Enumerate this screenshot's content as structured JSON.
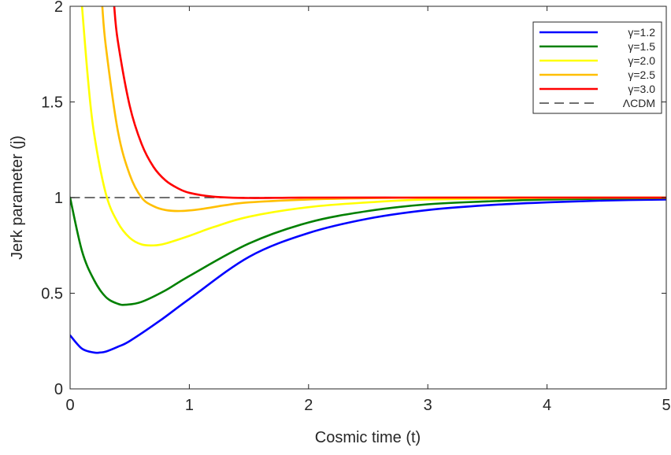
{
  "chart_data": {
    "type": "line",
    "title": "",
    "xlabel": "Cosmic time (t)",
    "ylabel": "Jerk parameter (j)",
    "xlim": [
      0,
      5
    ],
    "ylim": [
      0,
      2
    ],
    "xticks": [
      "0",
      "1",
      "2",
      "3",
      "4",
      "5"
    ],
    "yticks": [
      "0",
      "0.5",
      "1",
      "1.5",
      "2"
    ],
    "grid": false,
    "legend_position": "top-right",
    "series": [
      {
        "name": "γ=1.2",
        "color": "#0000ff",
        "x": [
          0,
          0.1,
          0.2,
          0.25,
          0.3,
          0.4,
          0.5,
          0.75,
          1.0,
          1.5,
          2.0,
          2.5,
          3.0,
          3.5,
          4.0,
          4.5,
          5.0
        ],
        "y": [
          0.28,
          0.21,
          0.19,
          0.19,
          0.195,
          0.22,
          0.25,
          0.355,
          0.47,
          0.69,
          0.815,
          0.89,
          0.935,
          0.96,
          0.975,
          0.985,
          0.99
        ]
      },
      {
        "name": "γ=1.5",
        "color": "#008000",
        "x": [
          0,
          0.1,
          0.2,
          0.3,
          0.4,
          0.47,
          0.6,
          0.8,
          1.0,
          1.5,
          2.0,
          2.5,
          3.0,
          3.5,
          4.0,
          5.0
        ],
        "y": [
          1.0,
          0.72,
          0.57,
          0.48,
          0.445,
          0.44,
          0.455,
          0.515,
          0.59,
          0.76,
          0.87,
          0.93,
          0.965,
          0.98,
          0.99,
          0.998
        ]
      },
      {
        "name": "γ=2.0",
        "color": "#ffff00",
        "x": [
          0.1,
          0.15,
          0.2,
          0.3,
          0.4,
          0.5,
          0.6,
          0.7,
          0.8,
          1.0,
          1.2,
          1.5,
          2.0,
          2.5,
          3.0,
          4.0,
          5.0
        ],
        "y": [
          2.0,
          1.62,
          1.34,
          1.02,
          0.87,
          0.79,
          0.755,
          0.75,
          0.76,
          0.8,
          0.845,
          0.9,
          0.95,
          0.975,
          0.99,
          0.998,
          1.0
        ]
      },
      {
        "name": "γ=2.5",
        "color": "#ffbf00",
        "x": [
          0.27,
          0.3,
          0.4,
          0.5,
          0.6,
          0.7,
          0.8,
          0.93,
          1.1,
          1.3,
          1.5,
          2.0,
          2.5,
          3.0,
          4.0,
          5.0
        ],
        "y": [
          2.0,
          1.79,
          1.35,
          1.12,
          1.0,
          0.955,
          0.935,
          0.93,
          0.94,
          0.96,
          0.975,
          0.99,
          0.997,
          1.0,
          1.0,
          1.0
        ]
      },
      {
        "name": "γ=3.0",
        "color": "#ff0000",
        "x": [
          0.37,
          0.4,
          0.5,
          0.6,
          0.7,
          0.8,
          0.9,
          1.0,
          1.2,
          1.5,
          2.0,
          3.0,
          4.0,
          5.0
        ],
        "y": [
          2.0,
          1.82,
          1.48,
          1.28,
          1.16,
          1.09,
          1.05,
          1.025,
          1.005,
          0.998,
          1.0,
          1.0,
          1.0,
          1.0
        ]
      },
      {
        "name": "ΛCDM",
        "color": "#404040",
        "dashed": true,
        "x": [
          0,
          5
        ],
        "y": [
          1,
          1
        ]
      }
    ]
  }
}
